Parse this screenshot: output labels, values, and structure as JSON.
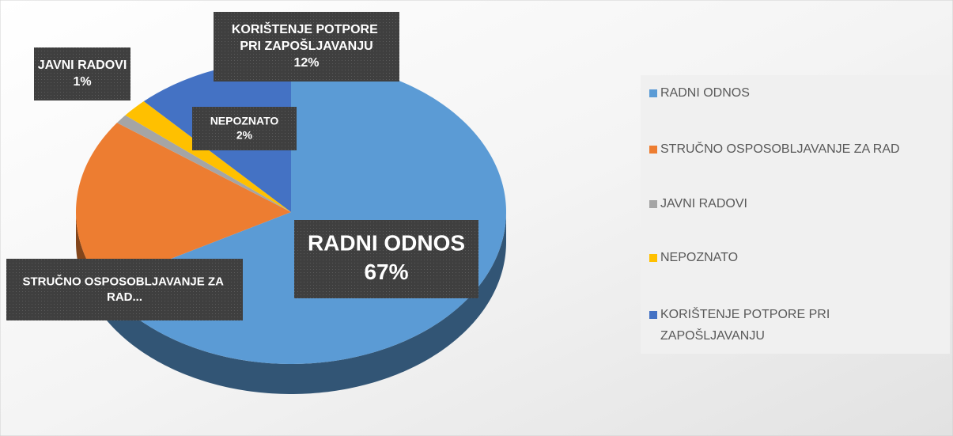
{
  "chart_data": {
    "type": "pie3d",
    "categories": [
      "RADNI ODNOS",
      "STRUČNO OSPOSOBLJAVANJE ZA RAD",
      "JAVNI RADOVI",
      "NEPOZNATO",
      "KORIŠTENJE POTPORE PRI ZAPOŠLJAVANJU"
    ],
    "values": [
      67,
      18,
      1,
      2,
      12
    ],
    "value_labels": [
      "67%",
      null,
      "1%",
      "2%",
      "12%"
    ],
    "data_labels": [
      "RADNI ODNOS",
      "STRUČNO OSPOSOBLJAVANJE ZA RAD...",
      "JAVNI RADOVI",
      "NEPOZNATO",
      "KORIŠTENJE POTPORE PRI ZAPOŠLJAVANJU"
    ],
    "colors": [
      "#5b9bd5",
      "#ed7d31",
      "#a5a5a5",
      "#ffc000",
      "#4472c4"
    ],
    "legend": "right"
  }
}
